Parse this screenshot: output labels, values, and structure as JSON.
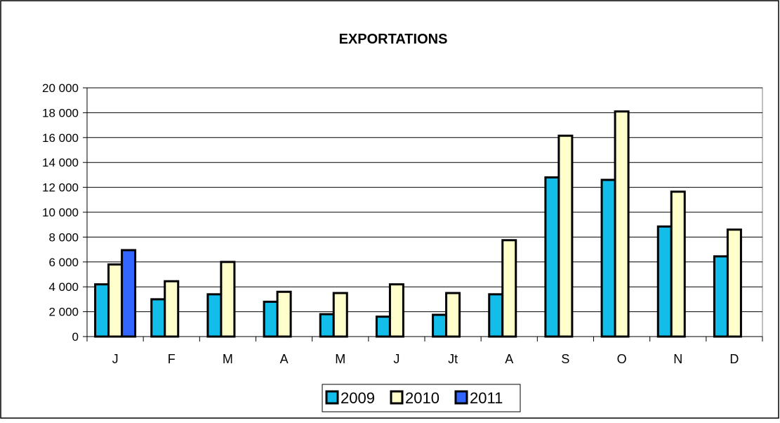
{
  "chart_data": {
    "type": "bar",
    "title": "EXPORTATIONS",
    "xlabel": "",
    "ylabel": "",
    "categories": [
      "J",
      "F",
      "M",
      "A",
      "M",
      "J",
      "Jt",
      "A",
      "S",
      "O",
      "N",
      "D"
    ],
    "series": [
      {
        "name": "2009",
        "color": "#12BDEA",
        "values": [
          4200,
          3000,
          3400,
          2800,
          1800,
          1600,
          1750,
          3400,
          12800,
          12600,
          8850,
          6450
        ]
      },
      {
        "name": "2010",
        "color": "#FFFFCC",
        "values": [
          5800,
          4450,
          6000,
          3600,
          3500,
          4200,
          3500,
          7750,
          16150,
          18100,
          11650,
          8600
        ]
      },
      {
        "name": "2011",
        "color": "#3366FF",
        "values": [
          6950,
          null,
          null,
          null,
          null,
          null,
          null,
          null,
          null,
          null,
          null,
          null
        ]
      }
    ],
    "ylim": [
      0,
      20000
    ],
    "yticks": [
      0,
      2000,
      4000,
      6000,
      8000,
      10000,
      12000,
      14000,
      16000,
      18000,
      20000
    ],
    "ytick_labels": [
      "0",
      "2 000",
      "4 000",
      "6 000",
      "8 000",
      "10 000",
      "12 000",
      "14 000",
      "16 000",
      "18 000",
      "20 000"
    ],
    "grid": true,
    "legend_position": "bottom"
  }
}
